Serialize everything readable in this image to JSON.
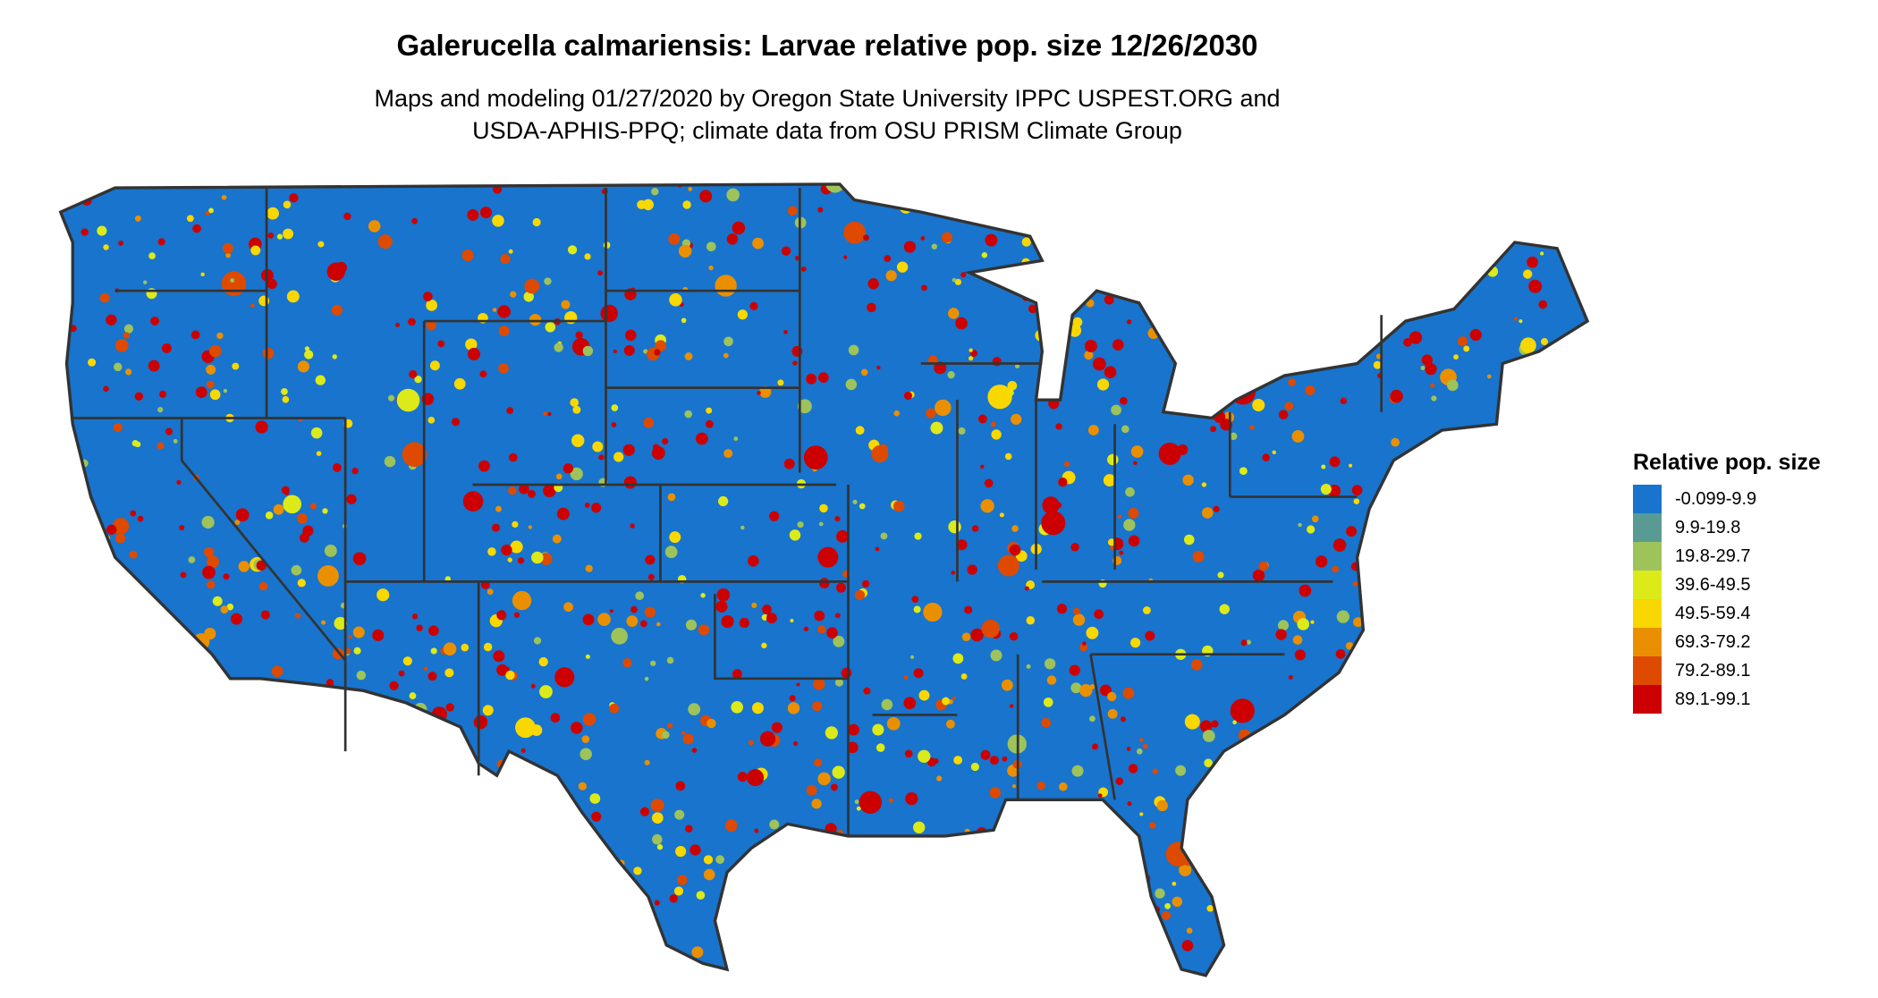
{
  "title": "Galerucella calmariensis: Larvae relative pop. size 12/26/2030",
  "subtitle_line1": "Maps and modeling 01/27/2020 by Oregon State University IPPC USPEST.ORG and",
  "subtitle_line2": "USDA-APHIS-PPQ; climate data from OSU PRISM Climate Group",
  "map": {
    "region": "Contiguous United States",
    "border_color": "#333333",
    "background_class_color": "#1874CD"
  },
  "legend": {
    "title": "Relative pop. size",
    "items": [
      {
        "label": "-0.099-9.9",
        "color": "#1874CD"
      },
      {
        "label": "9.9-19.8",
        "color": "#5A9A94"
      },
      {
        "label": "19.8-29.7",
        "color": "#9DC35A"
      },
      {
        "label": "39.6-49.5",
        "color": "#DDEA1A"
      },
      {
        "label": "49.5-59.4",
        "color": "#F8D800"
      },
      {
        "label": "69.3-79.2",
        "color": "#EA9000"
      },
      {
        "label": "79.2-89.1",
        "color": "#DD4A00"
      },
      {
        "label": "89.1-99.1",
        "color": "#CC0000"
      }
    ]
  }
}
